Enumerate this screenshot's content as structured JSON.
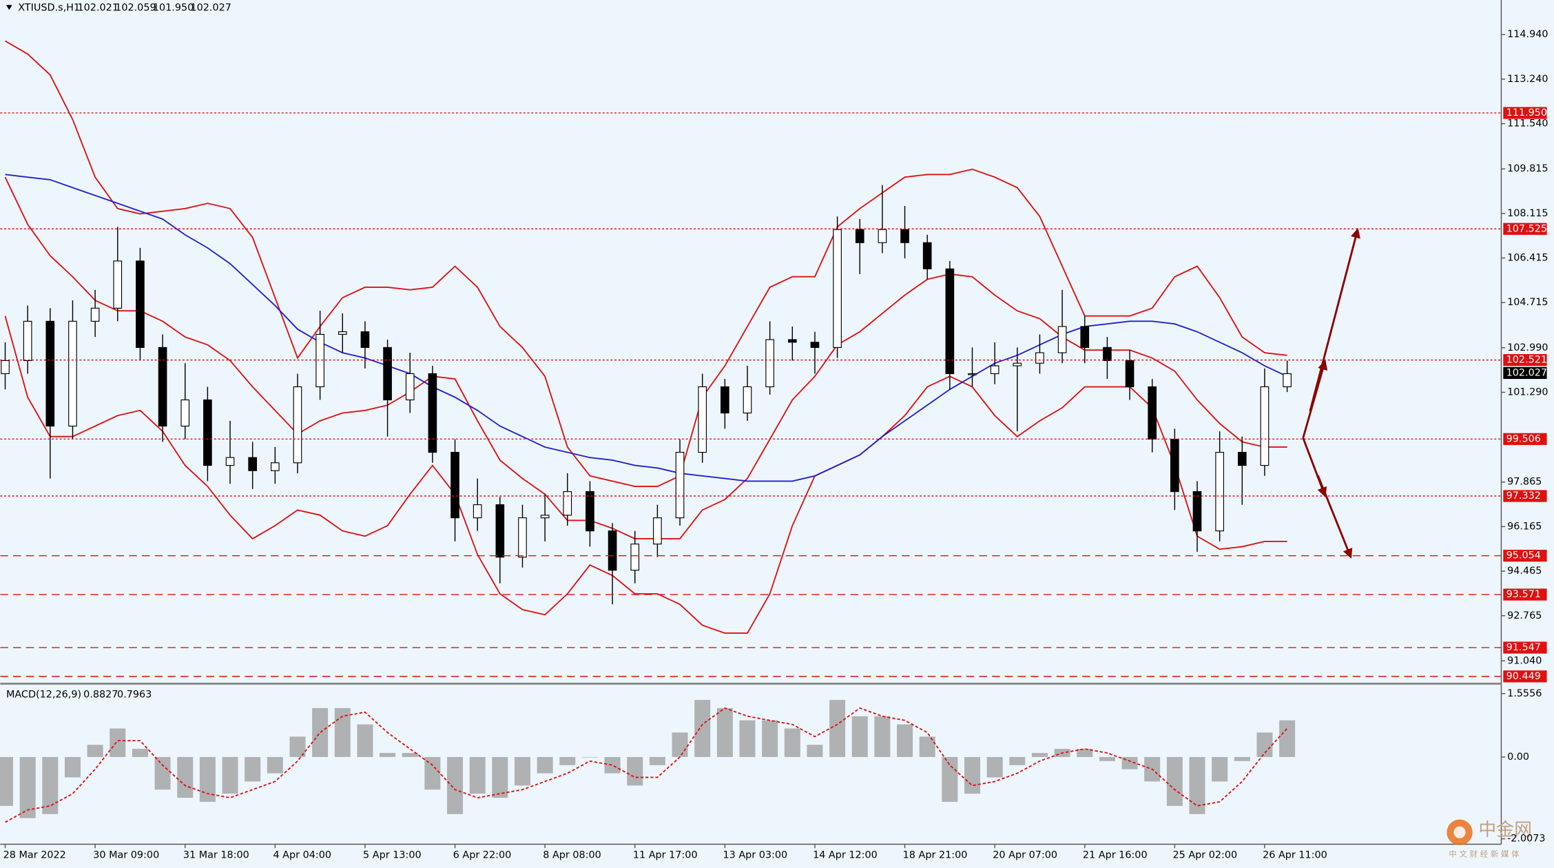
{
  "chart_data": [
    {
      "type": "candlestick",
      "title": "XTIUSD.s,H1",
      "header_values": [
        102.021,
        102.059,
        {
          "value": 101.95,
          "label": "101.950"
        },
        102.027
      ],
      "categories": [
        "28 Mar 2022",
        null,
        null,
        null,
        "30 Mar 09:00",
        null,
        null,
        null,
        "31 Mar 18:00",
        null,
        null,
        null,
        "4 Apr 04:00",
        null,
        null,
        null,
        "5 Apr 13:00",
        null,
        null,
        null,
        "6 Apr 22:00",
        null,
        null,
        null,
        "8 Apr 08:00",
        null,
        null,
        null,
        "11 Apr 17:00",
        null,
        null,
        null,
        "13 Apr 03:00",
        null,
        null,
        null,
        "14 Apr 12:00",
        null,
        null,
        null,
        "18 Apr 21:00",
        null,
        null,
        null,
        "20 Apr 07:00",
        null,
        null,
        null,
        "21 Apr 16:00",
        null,
        null,
        null,
        "25 Apr 02:00",
        null,
        null,
        null,
        "26 Apr 11:00",
        null
      ],
      "open": [
        102.0,
        102.5,
        104.0,
        100.0,
        104.0,
        104.5,
        106.3,
        103.0,
        100.0,
        101.0,
        98.5,
        98.8,
        98.3,
        98.6,
        101.5,
        103.5,
        103.6,
        103.0,
        101.0,
        102.0,
        99.0,
        96.5,
        97.0,
        95.0,
        96.5,
        96.6,
        97.5,
        96.0,
        94.5,
        95.5,
        96.5,
        99.0,
        101.5,
        100.5,
        101.5,
        103.3,
        103.2,
        103.0,
        107.5,
        107.0,
        107.5,
        107.0,
        106.0,
        102.0,
        102.0,
        102.3,
        102.4,
        102.8,
        103.8,
        103.0,
        102.5,
        101.5,
        99.5,
        97.5,
        96.0,
        99.0,
        98.5,
        101.5
      ],
      "high": [
        103.2,
        104.6,
        104.5,
        104.8,
        105.2,
        107.6,
        106.8,
        103.5,
        102.4,
        101.5,
        100.2,
        99.4,
        99.2,
        102.0,
        104.4,
        104.3,
        104.0,
        103.3,
        102.8,
        102.3,
        99.5,
        98.0,
        97.3,
        97.0,
        97.4,
        98.2,
        97.9,
        96.3,
        96.0,
        97.0,
        99.5,
        102.0,
        101.8,
        102.3,
        104.0,
        103.8,
        103.6,
        108.0,
        107.9,
        109.2,
        108.4,
        107.3,
        106.3,
        103.0,
        103.2,
        103.0,
        103.5,
        105.2,
        104.2,
        103.4,
        102.9,
        101.8,
        99.9,
        97.9,
        99.8,
        99.6,
        102.2,
        102.5
      ],
      "low": [
        101.4,
        102.0,
        98.0,
        99.5,
        103.4,
        104.0,
        102.5,
        99.4,
        99.5,
        97.9,
        97.8,
        97.6,
        97.8,
        98.2,
        101.0,
        102.8,
        102.2,
        99.6,
        100.5,
        98.6,
        95.6,
        96.0,
        94.0,
        94.6,
        95.6,
        96.2,
        95.4,
        93.2,
        94.0,
        95.0,
        96.2,
        98.6,
        99.9,
        100.2,
        101.2,
        102.5,
        102.0,
        102.6,
        105.8,
        106.6,
        106.4,
        105.6,
        101.4,
        101.5,
        101.6,
        99.8,
        102.0,
        102.4,
        102.4,
        101.8,
        101.0,
        99.0,
        96.8,
        95.2,
        95.6,
        97.0,
        98.1,
        101.3
      ],
      "close": [
        102.5,
        104.0,
        100.0,
        104.0,
        104.5,
        106.3,
        103.0,
        100.0,
        101.0,
        98.5,
        98.8,
        98.3,
        98.6,
        101.5,
        103.5,
        103.6,
        103.0,
        101.0,
        102.0,
        99.0,
        96.5,
        97.0,
        95.0,
        96.5,
        96.6,
        97.5,
        96.0,
        94.5,
        95.5,
        96.5,
        99.0,
        101.5,
        100.5,
        101.5,
        103.3,
        103.2,
        103.0,
        107.5,
        107.0,
        107.5,
        107.0,
        106.0,
        102.0,
        102.0,
        102.3,
        102.4,
        102.8,
        103.8,
        103.0,
        102.5,
        101.5,
        99.5,
        97.5,
        96.0,
        99.0,
        98.5,
        101.5,
        102.0
      ],
      "color": "#000000",
      "overlays": [
        {
          "color": "#e01010",
          "values": [
            114.7,
            114.2,
            113.4,
            111.7,
            109.5,
            108.3,
            108.1,
            108.2,
            108.3,
            108.5,
            108.3,
            107.2,
            104.9,
            102.6,
            103.8,
            104.9,
            105.3,
            105.3,
            105.2,
            105.3,
            106.1,
            105.3,
            103.8,
            103.0,
            101.9,
            99.2,
            98.1,
            97.9,
            97.7,
            97.7,
            98.1,
            101.1,
            102.3,
            103.8,
            105.3,
            105.7,
            105.7,
            107.6,
            108.3,
            108.9,
            109.5,
            109.6,
            109.6,
            109.8,
            109.5,
            109.1,
            108.0,
            106.1,
            104.2,
            104.2,
            104.2,
            104.5,
            105.7,
            106.1,
            104.9,
            103.4,
            102.8,
            102.7
          ]
        },
        {
          "color": "#e01010",
          "values": [
            109.5,
            107.7,
            106.5,
            105.7,
            104.8,
            104.4,
            104.4,
            104.0,
            103.4,
            103.1,
            102.5,
            101.5,
            100.6,
            99.7,
            100.2,
            100.5,
            100.6,
            100.8,
            101.3,
            101.9,
            101.8,
            100.2,
            98.7,
            98.0,
            97.4,
            96.4,
            96.4,
            96.1,
            95.7,
            95.7,
            95.7,
            96.8,
            97.2,
            98.0,
            99.5,
            101.0,
            101.9,
            103.1,
            103.6,
            104.3,
            105.0,
            105.6,
            105.8,
            105.7,
            105.0,
            104.4,
            104.1,
            103.4,
            102.9,
            102.9,
            102.9,
            102.6,
            102.1,
            101.0,
            100.1,
            99.4,
            99.2,
            99.2
          ]
        },
        {
          "color": "#e01010",
          "values": [
            104.2,
            101.1,
            99.6,
            99.6,
            100.0,
            100.4,
            100.6,
            99.8,
            98.5,
            97.7,
            96.6,
            95.7,
            96.2,
            96.8,
            96.6,
            96.0,
            95.8,
            96.2,
            97.4,
            98.5,
            97.4,
            95.1,
            93.6,
            93.0,
            92.8,
            93.6,
            94.7,
            94.3,
            93.6,
            93.6,
            93.2,
            92.4,
            92.1,
            92.1,
            93.6,
            96.2,
            98.1,
            98.5,
            98.9,
            99.6,
            100.4,
            101.5,
            101.9,
            101.5,
            100.4,
            99.6,
            100.2,
            100.7,
            101.5,
            101.5,
            101.5,
            100.7,
            98.5,
            95.8,
            95.3,
            95.4,
            95.6,
            95.6
          ]
        },
        {
          "color": "#2020d0",
          "values": [
            109.6,
            109.5,
            109.4,
            109.1,
            108.8,
            108.5,
            108.2,
            107.9,
            107.3,
            106.8,
            106.2,
            105.4,
            104.6,
            103.7,
            103.2,
            102.8,
            102.6,
            102.3,
            102.0,
            101.5,
            101.1,
            100.6,
            100.0,
            99.6,
            99.2,
            99.0,
            98.8,
            98.7,
            98.5,
            98.4,
            98.2,
            98.1,
            98.0,
            97.9,
            97.9,
            97.9,
            98.1,
            98.5,
            98.9,
            99.6,
            100.2,
            100.8,
            101.4,
            101.9,
            102.4,
            102.7,
            103.1,
            103.5,
            103.8,
            103.9,
            104.0,
            104.0,
            103.9,
            103.6,
            103.2,
            102.8,
            102.3,
            101.9
          ]
        }
      ],
      "levels": [
        {
          "value": 111.95,
          "label": "111.950",
          "style": "dotted"
        },
        {
          "value": 107.525,
          "label": "107.525",
          "style": "dotted"
        },
        {
          "value": 102.521,
          "label": "102.521",
          "style": "dotted"
        },
        {
          "value": 99.506,
          "label": "99.506",
          "style": "dotted"
        },
        {
          "value": 97.332,
          "label": "97.332",
          "style": "dotted"
        },
        {
          "value": 95.054,
          "label": "95.054",
          "style": "dashed"
        },
        {
          "value": 93.571,
          "label": "93.571",
          "style": "dashed"
        },
        {
          "value": 91.547,
          "label": "91.547",
          "style": "dashed"
        },
        {
          "value": 90.449,
          "label": "90.449",
          "style": "dashed"
        }
      ],
      "level_color": "#e01010",
      "current_price": {
        "value": 102.027,
        "label": "102.027"
      },
      "ylim": [
        90.17,
        116.26
      ],
      "yticks": [
        {
          "value": 114.94,
          "label": "114.940"
        },
        {
          "value": 113.24,
          "label": "113.240"
        },
        {
          "value": 111.54,
          "label": "111.540"
        },
        {
          "value": 109.815,
          "label": "109.815"
        },
        {
          "value": 108.115,
          "label": "108.115"
        },
        {
          "value": 106.415,
          "label": "106.415"
        },
        {
          "value": 104.715,
          "label": "104.715"
        },
        {
          "value": 102.99,
          "label": "102.990"
        },
        {
          "value": 101.29,
          "label": "101.290"
        },
        {
          "value": 97.865,
          "label": "97.865"
        },
        {
          "value": 96.165,
          "label": "96.165"
        },
        {
          "value": 94.465,
          "label": "94.465"
        },
        {
          "value": 92.765,
          "label": "92.765"
        },
        {
          "value": 91.04,
          "label": "91.040"
        }
      ]
    },
    {
      "type": "bar",
      "title": "MACD(12,26,9)",
      "header_values": [
        0.8827,
        0.7963
      ],
      "values": [
        -1.2,
        -1.5,
        -1.4,
        -0.5,
        0.3,
        0.7,
        0.2,
        -0.8,
        -1.0,
        -1.1,
        -0.9,
        -0.6,
        -0.4,
        0.5,
        1.2,
        1.2,
        0.8,
        0.1,
        0.1,
        -0.8,
        -1.4,
        -0.9,
        -1.0,
        -0.7,
        -0.4,
        -0.2,
        0.0,
        -0.4,
        -0.7,
        -0.2,
        0.6,
        1.4,
        1.2,
        0.9,
        0.9,
        0.7,
        0.3,
        1.4,
        1.0,
        1.0,
        0.8,
        0.5,
        -1.1,
        -0.9,
        -0.5,
        -0.2,
        0.1,
        0.2,
        0.2,
        -0.1,
        -0.3,
        -0.6,
        -1.2,
        -1.4,
        -0.6,
        -0.1,
        0.6,
        0.9
      ],
      "color": "#9a9a9a",
      "signal": {
        "color": "#e01010",
        "values": [
          -1.6,
          -1.3,
          -1.2,
          -0.9,
          -0.3,
          0.4,
          0.4,
          -0.2,
          -0.7,
          -0.9,
          -1.0,
          -0.8,
          -0.6,
          -0.1,
          0.6,
          1.0,
          1.1,
          0.6,
          0.2,
          -0.2,
          -0.8,
          -1.0,
          -0.9,
          -0.8,
          -0.6,
          -0.4,
          -0.1,
          -0.2,
          -0.5,
          -0.5,
          0.0,
          0.8,
          1.2,
          1.0,
          0.9,
          0.8,
          0.5,
          0.8,
          1.2,
          1.0,
          0.9,
          0.6,
          -0.2,
          -0.7,
          -0.6,
          -0.4,
          -0.1,
          0.1,
          0.2,
          0.1,
          -0.1,
          -0.3,
          -0.8,
          -1.2,
          -1.1,
          -0.6,
          0.1,
          0.7
        ]
      },
      "ylim": [
        -2.14,
        1.75
      ],
      "yticks": [
        1.5556,
        {
          "value": 0,
          "label": "0.00"
        },
        {
          "value": -2.0073,
          "label": "-2.0073"
        }
      ]
    }
  ],
  "watermark": {
    "name": "中金网",
    "tagline": "中 文 财 经 新 媒 体"
  }
}
